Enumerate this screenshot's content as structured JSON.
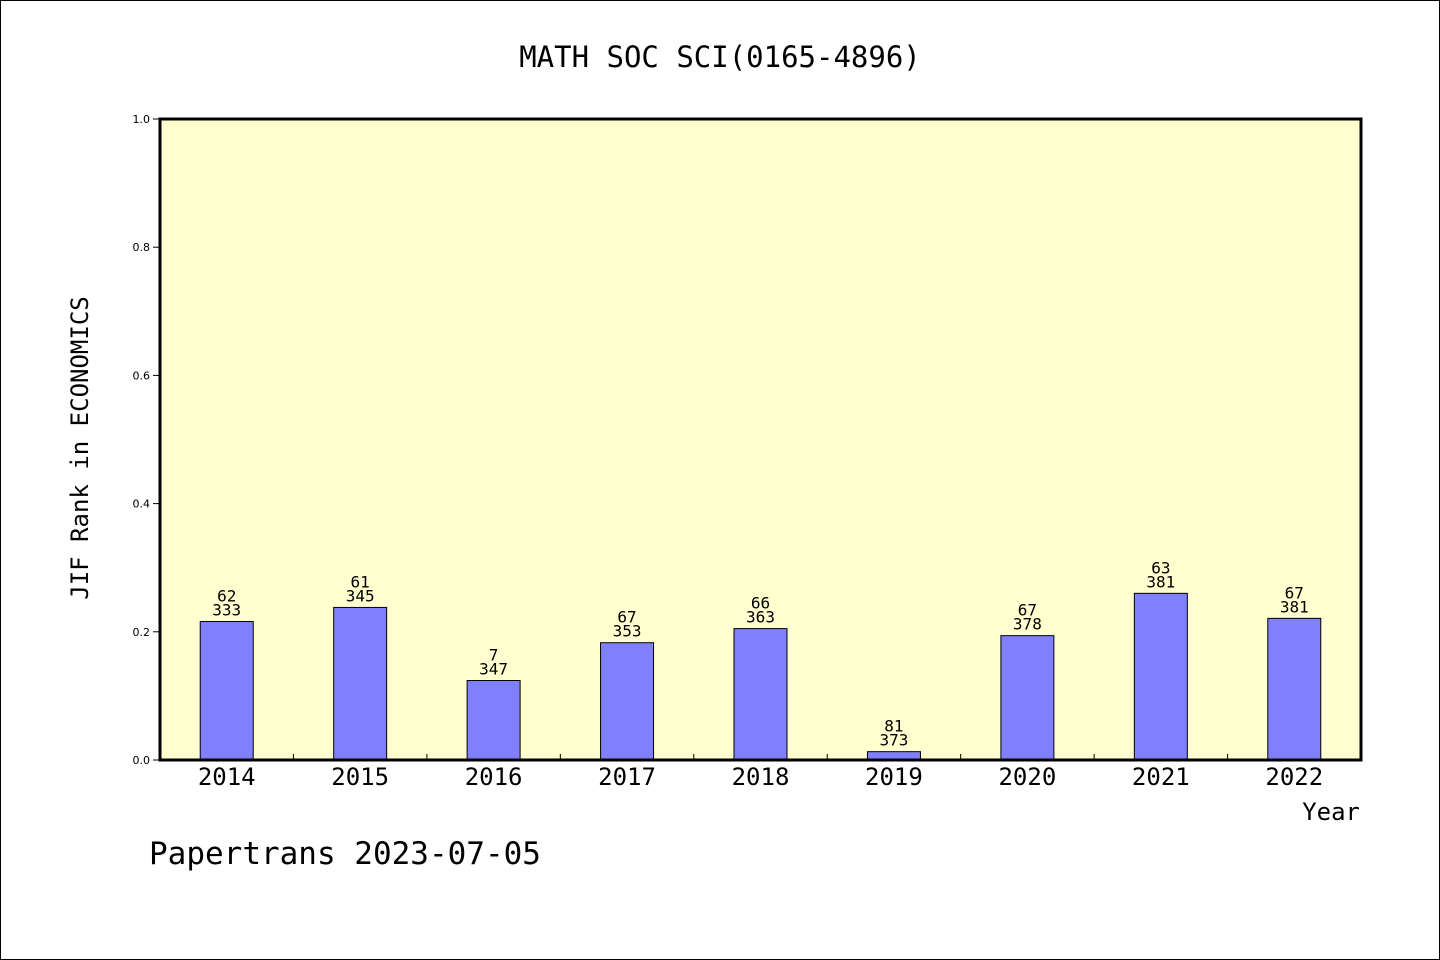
{
  "chart_data": {
    "type": "bar",
    "title": "MATH SOC SCI(0165-4896)",
    "ylabel": "JIF Rank in ECONOMICS",
    "xlabel": "Year",
    "footer": "Papertrans 2023-07-05",
    "ylim": [
      0,
      1.0
    ],
    "y_ticks": [
      "0.0",
      "0.2",
      "0.4",
      "0.6",
      "0.8",
      "1.0"
    ],
    "grid": false,
    "plot_background": "#ffffd0",
    "bar_color": "#8080ff",
    "categories": [
      "2014",
      "2015",
      "2016",
      "2017",
      "2018",
      "2019",
      "2020",
      "2021",
      "2022"
    ],
    "values": [
      0.216,
      0.238,
      0.124,
      0.183,
      0.205,
      0.013,
      0.194,
      0.26,
      0.221
    ],
    "label_top": [
      "62",
      "61",
      "7",
      "67",
      "66",
      "81",
      "67",
      "63",
      "67"
    ],
    "label_bottom": [
      "333",
      "345",
      "347",
      "353",
      "363",
      "373",
      "378",
      "381",
      "381"
    ]
  }
}
